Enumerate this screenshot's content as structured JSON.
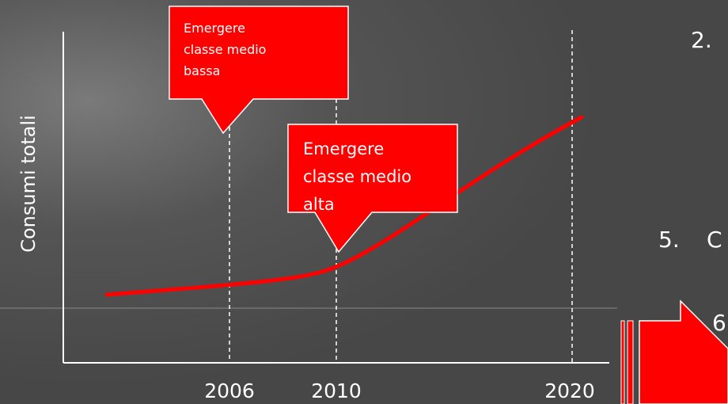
{
  "axis_label": "Consumi totali",
  "year_labels": [
    "2006",
    "2010",
    "2020"
  ],
  "callouts": [
    {
      "lines": [
        "Emergere",
        "classe medio",
        "bassa"
      ]
    },
    {
      "lines": [
        "Emergere",
        "classe medio",
        "alta"
      ]
    }
  ],
  "list_fragments": [
    "2.",
    "5.",
    "C",
    "6"
  ]
}
